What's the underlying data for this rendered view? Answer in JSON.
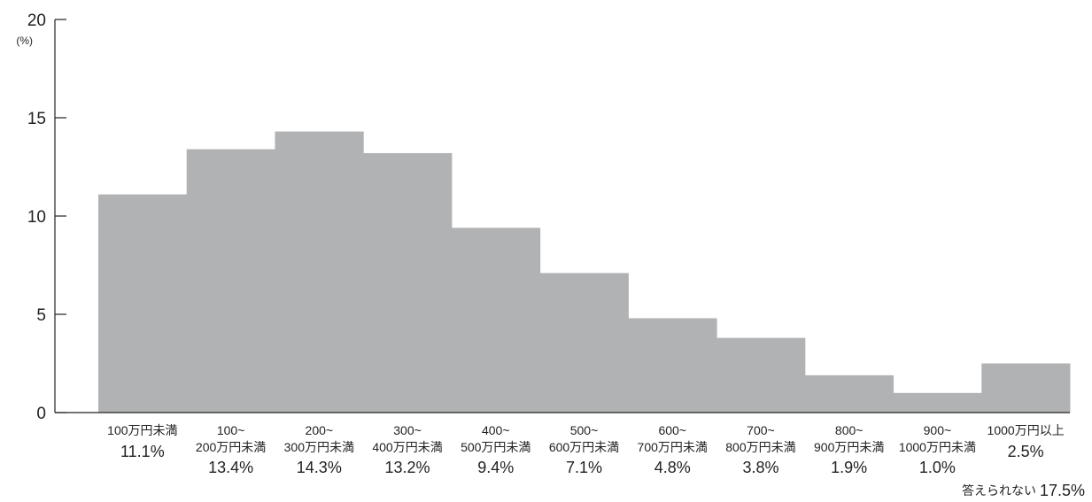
{
  "chart_data": {
    "type": "bar",
    "yunit": "(%)",
    "ylim": [
      0,
      20
    ],
    "yticks": [
      0,
      5,
      10,
      15,
      20
    ],
    "grid": false,
    "legend": "none",
    "categories": [
      [
        "100万円未満"
      ],
      [
        "100~",
        "200万円未満"
      ],
      [
        "200~",
        "300万円未満"
      ],
      [
        "300~",
        "400万円未満"
      ],
      [
        "400~",
        "500万円未満"
      ],
      [
        "500~",
        "600万円未満"
      ],
      [
        "600~",
        "700万円未満"
      ],
      [
        "700~",
        "800万円未満"
      ],
      [
        "800~",
        "900万円未満"
      ],
      [
        "900~",
        "1000万円未満"
      ],
      [
        "1000万円以上"
      ]
    ],
    "values": [
      11.1,
      13.4,
      14.3,
      13.2,
      9.4,
      7.1,
      4.8,
      3.8,
      1.9,
      1.0,
      2.5
    ],
    "value_labels": [
      "11.1%",
      "13.4%",
      "14.3%",
      "13.2%",
      "9.4%",
      "7.1%",
      "4.8%",
      "3.8%",
      "1.9%",
      "1.0%",
      "2.5%"
    ],
    "bar_color": "#b1b2b4",
    "axis_color": "#222222",
    "note": {
      "label": "答えられない",
      "value": "17.5%"
    }
  }
}
